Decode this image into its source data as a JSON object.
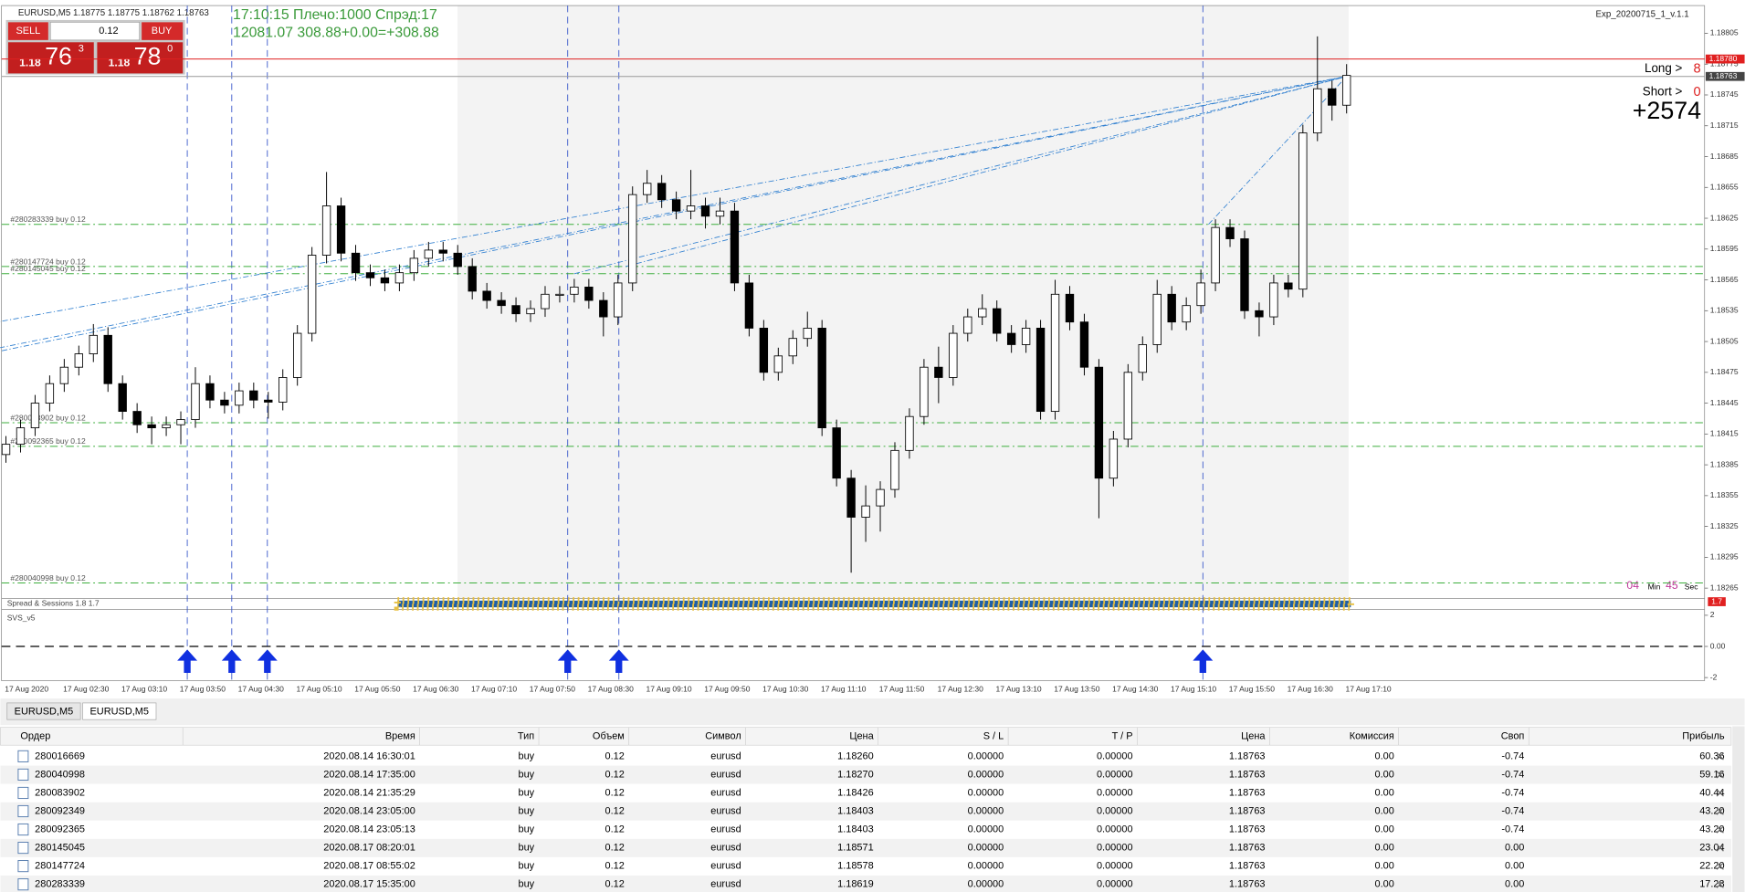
{
  "window": {
    "symbol_info": "EURUSD,M5  1.18775 1.18775 1.18762 1.18763",
    "expert": "Exp_20200715_1_v.1.1",
    "status_line1": "17:10:15 Плечо:1000 Спрэд:17",
    "status_line2": "12081.07 308.88+0.00=+308.88",
    "long_label": "Long >",
    "long_count": "8",
    "short_label": "Short >",
    "short_count": "0",
    "profit": "+2574",
    "timer": {
      "min": "04",
      "min_label": "Min",
      "sec": "45",
      "sec_label": "Sec"
    }
  },
  "one_click": {
    "sell": "SELL",
    "buy": "BUY",
    "lot": "0.12",
    "sell_price": {
      "big": "1.18",
      "pips": "76",
      "frac": "3"
    },
    "buy_price": {
      "big": "1.18",
      "pips": "78",
      "frac": "0"
    }
  },
  "chart_data": {
    "type": "candlestick",
    "categories": [
      "17 Aug 2020",
      null,
      null,
      null,
      "17 Aug 02:30",
      null,
      null,
      null,
      "17 Aug 03:10",
      null,
      null,
      null,
      "17 Aug 03:50",
      null,
      null,
      null,
      "17 Aug 04:30",
      null,
      null,
      null,
      "17 Aug 05:10",
      null,
      null,
      null,
      "17 Aug 05:50",
      null,
      null,
      null,
      "17 Aug 06:30",
      null,
      null,
      null,
      "17 Aug 07:10",
      null,
      null,
      null,
      "17 Aug 07:50",
      null,
      null,
      null,
      "17 Aug 08:30",
      null,
      null,
      null,
      "17 Aug 09:10",
      null,
      null,
      null,
      "17 Aug 09:50",
      null,
      null,
      null,
      "17 Aug 10:30",
      null,
      null,
      null,
      "17 Aug 11:10",
      null,
      null,
      null,
      "17 Aug 11:50",
      null,
      null,
      null,
      "17 Aug 12:30",
      null,
      null,
      null,
      "17 Aug 13:10",
      null,
      null,
      null,
      "17 Aug 13:50",
      null,
      null,
      null,
      "17 Aug 14:30",
      null,
      null,
      null,
      "17 Aug 15:10",
      null,
      null,
      null,
      "17 Aug 15:50",
      null,
      null,
      null,
      "17 Aug 16:30",
      null,
      null,
      null,
      "17 Aug 17:10"
    ],
    "open": [
      1.18395,
      1.18405,
      1.18421,
      1.18445,
      1.18464,
      1.1848,
      1.18493,
      1.18511,
      1.18464,
      1.18437,
      1.18424,
      1.18421,
      1.18424,
      1.18429,
      1.18464,
      1.18448,
      1.18443,
      1.18457,
      1.18448,
      1.18446,
      1.1847,
      1.18513,
      1.18589,
      1.18637,
      1.18591,
      1.18572,
      1.18567,
      1.18562,
      1.18572,
      1.18586,
      1.18594,
      1.18591,
      1.18578,
      1.18554,
      1.18545,
      1.1854,
      1.18532,
      1.18537,
      1.18551,
      1.18551,
      1.18558,
      1.18545,
      1.18529,
      1.18562,
      1.18648,
      1.18659,
      1.18643,
      1.18632,
      1.18637,
      1.18627,
      1.18632,
      1.18562,
      1.18518,
      1.18475,
      1.18491,
      1.18508,
      1.18518,
      1.18421,
      1.18372,
      1.18334,
      1.18345,
      1.18361,
      1.18399,
      1.18432,
      1.1848,
      1.1847,
      1.18513,
      1.18529,
      1.18537,
      1.18513,
      1.18502,
      1.18518,
      1.18437,
      1.18551,
      1.18524,
      1.1848,
      1.18372,
      1.1841,
      1.18475,
      1.18502,
      1.18551,
      1.18524,
      1.1854,
      1.18562,
      1.18616,
      1.18605,
      1.18535,
      1.18529,
      1.18562,
      1.18556,
      1.18708,
      1.18751,
      1.18735
    ],
    "high": [
      1.18413,
      1.18429,
      1.18453,
      1.18472,
      1.18488,
      1.18501,
      1.18522,
      1.18519,
      1.18472,
      1.18445,
      1.18432,
      1.18432,
      1.18437,
      1.1848,
      1.18472,
      1.18456,
      1.18465,
      1.18465,
      1.18456,
      1.18478,
      1.18521,
      1.18597,
      1.1867,
      1.18645,
      1.18599,
      1.1858,
      1.18575,
      1.1858,
      1.18594,
      1.18602,
      1.18602,
      1.18599,
      1.18586,
      1.18562,
      1.18553,
      1.18548,
      1.18545,
      1.18559,
      1.18559,
      1.18566,
      1.18566,
      1.18553,
      1.1857,
      1.18656,
      1.18672,
      1.18667,
      1.18651,
      1.18672,
      1.18645,
      1.18645,
      1.1864,
      1.1857,
      1.18526,
      1.18499,
      1.18516,
      1.18534,
      1.18526,
      1.18429,
      1.1838,
      1.18365,
      1.18369,
      1.18407,
      1.1844,
      1.18488,
      1.185,
      1.18521,
      1.18537,
      1.18551,
      1.18545,
      1.18521,
      1.18526,
      1.18526,
      1.18565,
      1.18559,
      1.18532,
      1.18488,
      1.18418,
      1.18483,
      1.1851,
      1.18565,
      1.18559,
      1.18548,
      1.18575,
      1.18624,
      1.18624,
      1.18613,
      1.18543,
      1.1857,
      1.1857,
      1.18716,
      1.18802,
      1.18759,
      1.18775
    ],
    "low": [
      1.18387,
      1.18397,
      1.18413,
      1.18437,
      1.18456,
      1.18472,
      1.18485,
      1.18456,
      1.18429,
      1.18416,
      1.18405,
      1.18413,
      1.18405,
      1.18421,
      1.1844,
      1.18435,
      1.18435,
      1.1844,
      1.1843,
      1.18438,
      1.18462,
      1.18505,
      1.18581,
      1.18583,
      1.18564,
      1.18559,
      1.18554,
      1.18554,
      1.18564,
      1.18578,
      1.18583,
      1.1857,
      1.18546,
      1.18537,
      1.18532,
      1.18524,
      1.18524,
      1.18529,
      1.18543,
      1.18543,
      1.18537,
      1.1851,
      1.18521,
      1.18554,
      1.1864,
      1.18635,
      1.18624,
      1.18624,
      1.18615,
      1.18619,
      1.18554,
      1.1851,
      1.18467,
      1.18467,
      1.18483,
      1.185,
      1.18413,
      1.18364,
      1.1828,
      1.1831,
      1.1832,
      1.18353,
      1.18391,
      1.18424,
      1.18445,
      1.18462,
      1.18505,
      1.18521,
      1.18505,
      1.18494,
      1.18494,
      1.18429,
      1.18429,
      1.18516,
      1.18472,
      1.18333,
      1.18364,
      1.18402,
      1.18467,
      1.18494,
      1.18516,
      1.18516,
      1.18532,
      1.18554,
      1.18597,
      1.18527,
      1.1851,
      1.18521,
      1.18548,
      1.18548,
      1.187,
      1.1872,
      1.18727
    ],
    "close": [
      1.18405,
      1.18421,
      1.18445,
      1.18464,
      1.1848,
      1.18493,
      1.18511,
      1.18464,
      1.18437,
      1.18424,
      1.18421,
      1.18424,
      1.18429,
      1.18464,
      1.18448,
      1.18443,
      1.18457,
      1.18448,
      1.18446,
      1.1847,
      1.18513,
      1.18589,
      1.18637,
      1.18591,
      1.18572,
      1.18567,
      1.18562,
      1.18572,
      1.18586,
      1.18594,
      1.18591,
      1.18578,
      1.18554,
      1.18545,
      1.1854,
      1.18532,
      1.18537,
      1.18551,
      1.18551,
      1.18558,
      1.18545,
      1.18529,
      1.18562,
      1.18648,
      1.18659,
      1.18643,
      1.18632,
      1.18637,
      1.18627,
      1.18632,
      1.18562,
      1.18518,
      1.18475,
      1.18491,
      1.18508,
      1.18518,
      1.18421,
      1.18372,
      1.18334,
      1.18345,
      1.18361,
      1.18399,
      1.18432,
      1.1848,
      1.1847,
      1.18513,
      1.18529,
      1.18537,
      1.18513,
      1.18502,
      1.18518,
      1.18437,
      1.18551,
      1.18524,
      1.1848,
      1.18372,
      1.1841,
      1.18475,
      1.18502,
      1.18551,
      1.18524,
      1.1854,
      1.18562,
      1.18616,
      1.18605,
      1.18535,
      1.18529,
      1.18562,
      1.18556,
      1.18708,
      1.18751,
      1.18735,
      1.18764
    ],
    "up_color": "#ffffff",
    "down_color": "#000000",
    "ylim": [
      1.18255,
      1.18832
    ],
    "yticks": [
      1.18805,
      1.18775,
      1.18745,
      1.18715,
      1.18685,
      1.18655,
      1.18625,
      1.18595,
      1.18565,
      1.18535,
      1.18505,
      1.18475,
      1.18445,
      1.18415,
      1.18385,
      1.18355,
      1.18325,
      1.18295,
      1.18265
    ],
    "grid": false,
    "ask_line": {
      "value": 1.1878,
      "label": "1.18780"
    },
    "bid_line": {
      "value": 1.18763,
      "label": "1.18763"
    },
    "order_lines": [
      {
        "label": "#280283339 buy 0.12",
        "price": 1.18619
      },
      {
        "label": "#280147724 buy 0.12",
        "price": 1.18578
      },
      {
        "label": "#280145045 buy 0.12",
        "price": 1.18571
      },
      {
        "label": "#280083902 buy 0.12",
        "price": 1.18426
      },
      {
        "label": "#280092365 buy 0.12",
        "price": 1.18403
      },
      {
        "label": "#280040998 buy 0.12",
        "price": 1.1827
      }
    ],
    "order_color": "#3cae3c"
  },
  "indicators": {
    "spread": {
      "title": "Spread & Sessions 1.8 1.7",
      "value": "1.7"
    },
    "svs": {
      "title": "SVS_v5",
      "ylim": [
        -2.2,
        2.3
      ],
      "yticks": [
        2,
        {
          "value": 0,
          "label": "0.00"
        },
        -2
      ]
    }
  },
  "tabs": [
    "EURUSD,M5",
    "EURUSD,M5"
  ],
  "table": {
    "columns": [
      "Ордер",
      "Время",
      "Тип",
      "Объем",
      "Символ",
      "Цена",
      "S / L",
      "T / P",
      "Цена",
      "Комиссия",
      "Своп",
      "Прибыль"
    ],
    "rows": [
      [
        "280016669",
        "2020.08.14 16:30:01",
        "buy",
        "0.12",
        "eurusd",
        "1.18260",
        "0.00000",
        "0.00000",
        "1.18763",
        "0.00",
        "-0.74",
        "60.36"
      ],
      [
        "280040998",
        "2020.08.14 17:35:00",
        "buy",
        "0.12",
        "eurusd",
        "1.18270",
        "0.00000",
        "0.00000",
        "1.18763",
        "0.00",
        "-0.74",
        "59.16"
      ],
      [
        "280083902",
        "2020.08.14 21:35:29",
        "buy",
        "0.12",
        "eurusd",
        "1.18426",
        "0.00000",
        "0.00000",
        "1.18763",
        "0.00",
        "-0.74",
        "40.44"
      ],
      [
        "280092349",
        "2020.08.14 23:05:00",
        "buy",
        "0.12",
        "eurusd",
        "1.18403",
        "0.00000",
        "0.00000",
        "1.18763",
        "0.00",
        "-0.74",
        "43.20"
      ],
      [
        "280092365",
        "2020.08.14 23:05:13",
        "buy",
        "0.12",
        "eurusd",
        "1.18403",
        "0.00000",
        "0.00000",
        "1.18763",
        "0.00",
        "-0.74",
        "43.20"
      ],
      [
        "280145045",
        "2020.08.17 08:20:01",
        "buy",
        "0.12",
        "eurusd",
        "1.18571",
        "0.00000",
        "0.00000",
        "1.18763",
        "0.00",
        "0.00",
        "23.04"
      ],
      [
        "280147724",
        "2020.08.17 08:55:02",
        "buy",
        "0.12",
        "eurusd",
        "1.18578",
        "0.00000",
        "0.00000",
        "1.18763",
        "0.00",
        "0.00",
        "22.20"
      ],
      [
        "280283339",
        "2020.08.17 15:35:00",
        "buy",
        "0.12",
        "eurusd",
        "1.18619",
        "0.00000",
        "0.00000",
        "1.18763",
        "0.00",
        "0.00",
        "17.28"
      ]
    ]
  }
}
